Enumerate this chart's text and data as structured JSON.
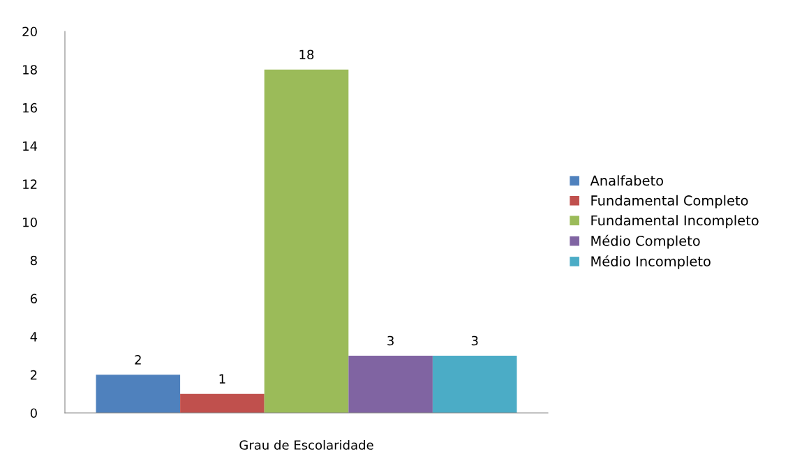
{
  "chart_data": {
    "type": "bar",
    "categories": [
      "Grau de Escolaridade"
    ],
    "series": [
      {
        "name": "Analfabeto",
        "color": "#4f81bd",
        "values": [
          2
        ]
      },
      {
        "name": "Fundamental Completo",
        "color": "#c0504d",
        "values": [
          1
        ]
      },
      {
        "name": "Fundamental Incompleto",
        "color": "#9bbb59",
        "values": [
          18
        ]
      },
      {
        "name": "Médio Completo",
        "color": "#8064a2",
        "values": [
          3
        ]
      },
      {
        "name": "Médio Incompleto",
        "color": "#4bacc6",
        "values": [
          3
        ]
      }
    ],
    "ylim": [
      0,
      20
    ],
    "yticks": [
      0,
      2,
      4,
      6,
      8,
      10,
      12,
      14,
      16,
      18,
      20
    ],
    "data_labels": true,
    "legend": "right",
    "grid": false
  }
}
